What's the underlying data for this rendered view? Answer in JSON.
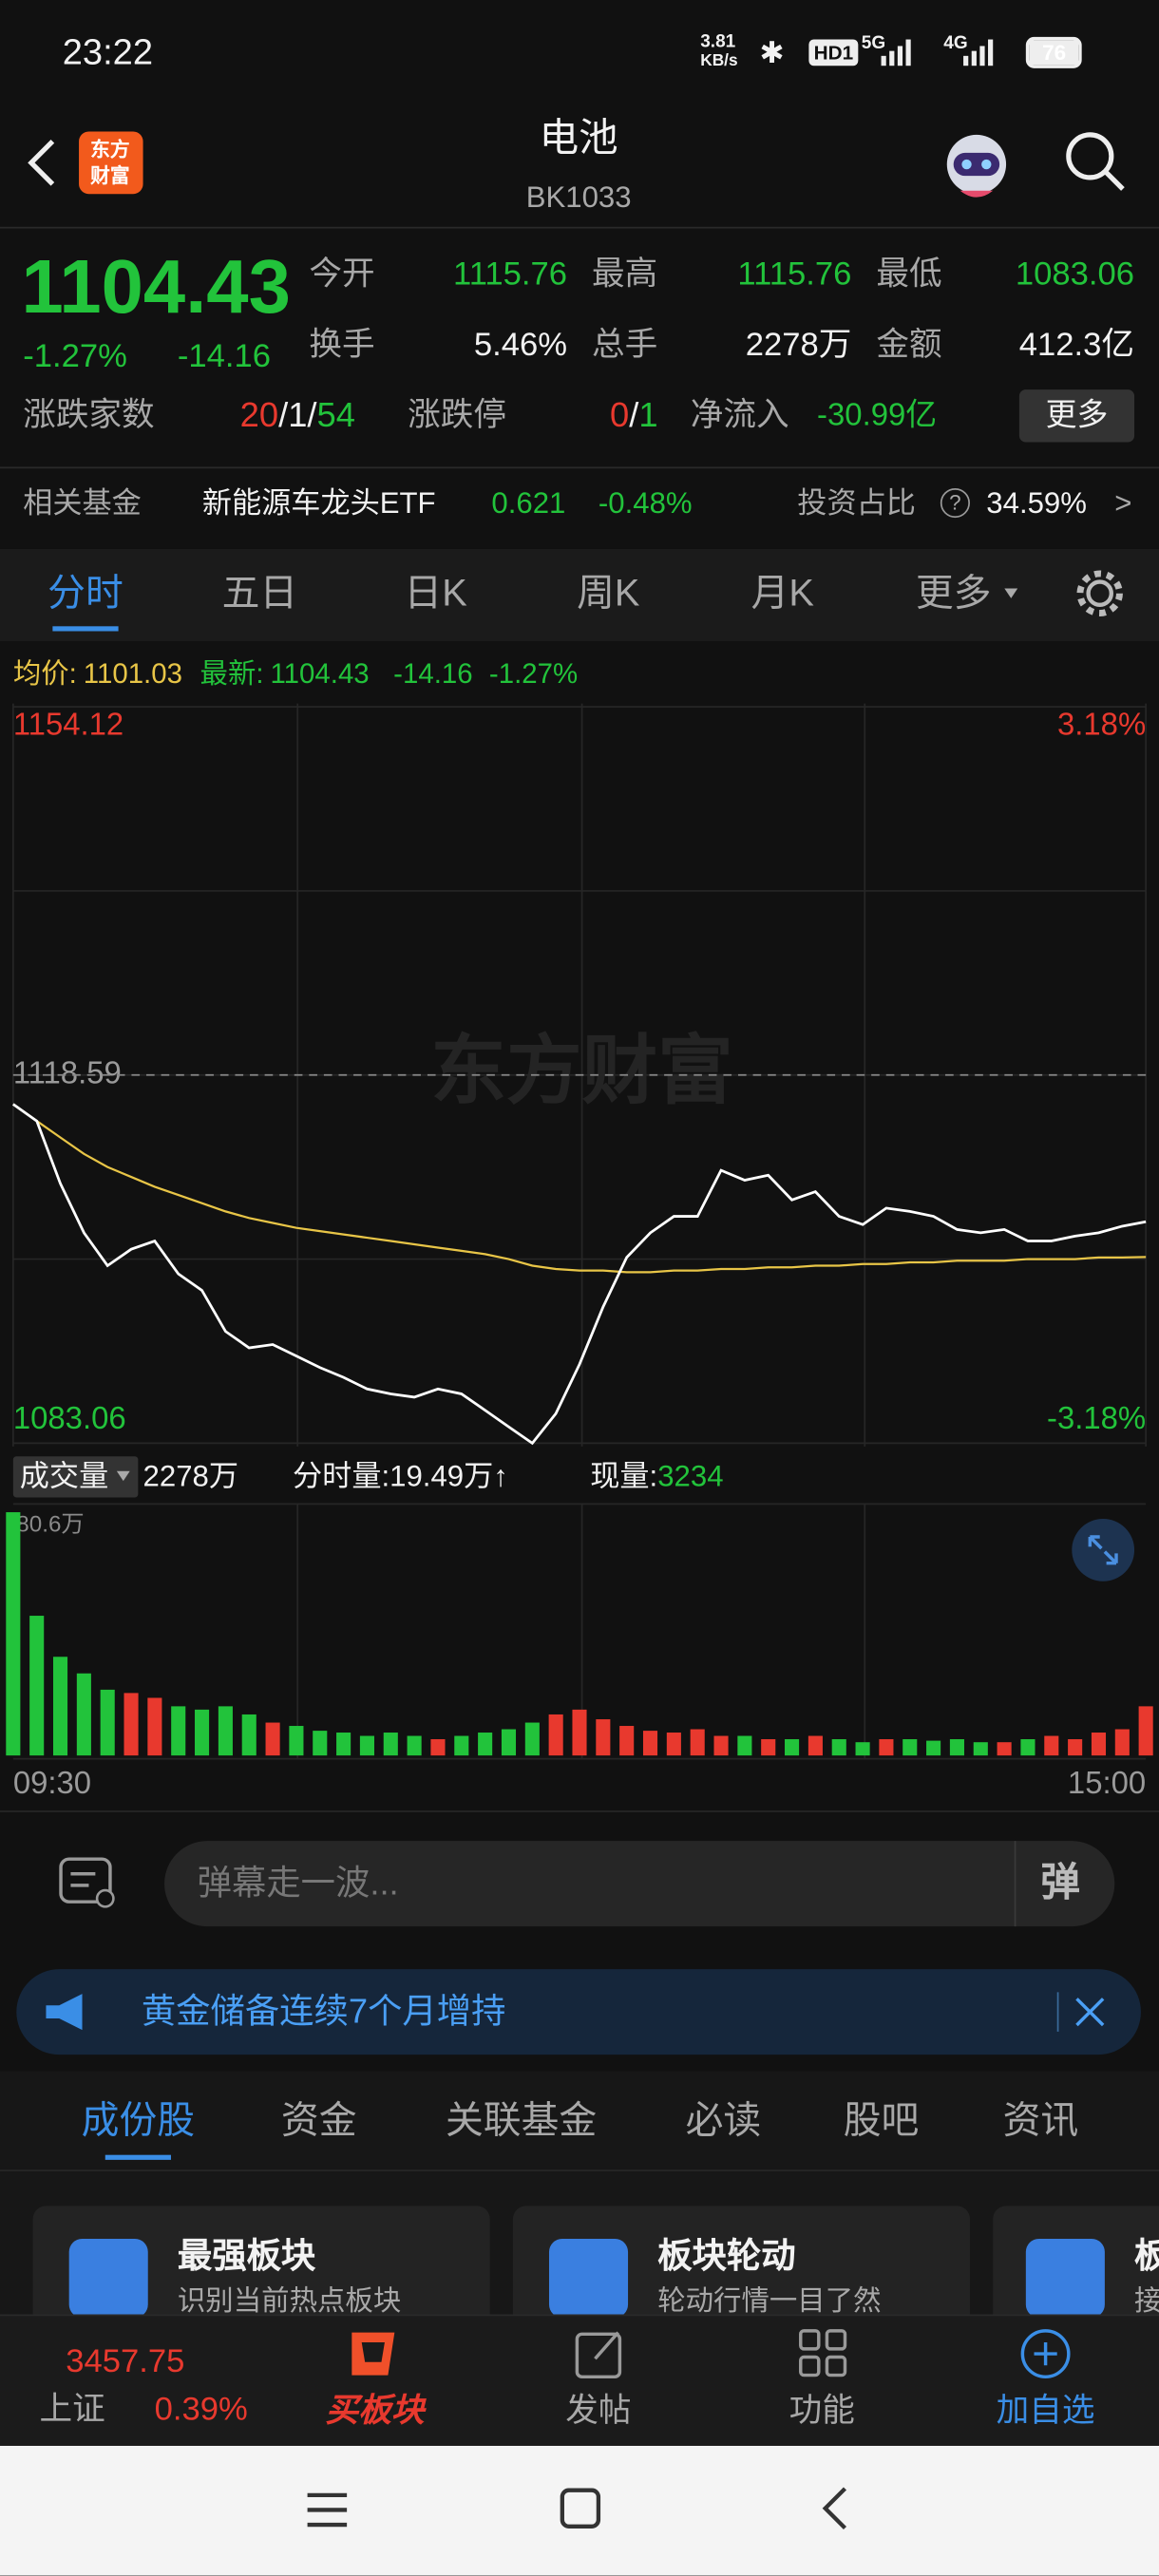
{
  "status_bar": {
    "time": "23:22",
    "net_speed": "3.81",
    "net_unit": "KB/s",
    "hd": "HD1",
    "sig1": "5G",
    "sig2": "4G",
    "battery": "76"
  },
  "header": {
    "logo_top": "东方",
    "logo_bottom": "财富",
    "title": "电池",
    "code": "BK1033"
  },
  "quote": {
    "price": "1104.43",
    "change_pct": "-1.27%",
    "change": "-14.16",
    "fields": [
      {
        "label": "今开",
        "value": "1115.76"
      },
      {
        "label": "最高",
        "value": "1115.76"
      },
      {
        "label": "最低",
        "value": "1083.06"
      },
      {
        "label": "换手",
        "value": "5.46%"
      },
      {
        "label": "总手",
        "value": "2278万"
      },
      {
        "label": "金额",
        "value": "412.3亿"
      }
    ]
  },
  "breadth": {
    "label": "涨跌家数",
    "up": "20",
    "sep": "/",
    "flat": "1",
    "down": "54",
    "limit_label": "涨跌停",
    "limit_up": "0",
    "limit_down": "1",
    "flow_label": "净流入",
    "flow": "-30.99亿",
    "more": "更多"
  },
  "fund": {
    "label": "相关基金",
    "name": "新能源车龙头ETF",
    "price": "0.621",
    "change": "-0.48%",
    "ratio_label": "投资占比",
    "help": "?",
    "ratio": "34.59%",
    "arrow": ">"
  },
  "tabs": {
    "items": [
      "分时",
      "五日",
      "日K",
      "周K",
      "月K",
      "更多"
    ]
  },
  "chart_data": {
    "type": "line",
    "watermark": "东方财富",
    "categories": [
      "09:30",
      null,
      null,
      null,
      null,
      null,
      null,
      null,
      null,
      null,
      null,
      null,
      null,
      null,
      null,
      null,
      null,
      null,
      null,
      null,
      null,
      null,
      null,
      null,
      null,
      null,
      null,
      null,
      null,
      null,
      null,
      null,
      null,
      null,
      null,
      null,
      null,
      null,
      null,
      null,
      null,
      null,
      null,
      null,
      null,
      null,
      null,
      null,
      "15:00"
    ],
    "series": [
      {
        "name": "均价:",
        "color": "#e8c547",
        "label": "1101.03",
        "values": [
          1115.76,
          1114.15,
          1112.56,
          1110.97,
          1109.71,
          1108.76,
          1107.8,
          1107.01,
          1106.22,
          1105.42,
          1104.79,
          1104.32,
          1103.84,
          1103.52,
          1103.2,
          1102.89,
          1102.57,
          1102.25,
          1101.94,
          1101.62,
          1101.3,
          1100.82,
          1100.19,
          1099.87,
          1099.71,
          1099.71,
          1099.55,
          1099.55,
          1099.71,
          1099.71,
          1099.87,
          1099.87,
          1100.03,
          1100.03,
          1100.19,
          1100.19,
          1100.35,
          1100.35,
          1100.51,
          1100.51,
          1100.67,
          1100.67,
          1100.67,
          1100.82,
          1100.82,
          1100.82,
          1100.98,
          1100.98,
          1101.03
        ]
      },
      {
        "name": "最新:",
        "color": "#ffffff",
        "label": "1104.43",
        "change": "-14.16",
        "change_pct": "-1.27%",
        "values": [
          1115.76,
          1114.15,
          1108.12,
          1103.36,
          1100.19,
          1101.78,
          1102.57,
          1099.4,
          1097.81,
          1093.84,
          1092.26,
          1092.58,
          1091.47,
          1090.35,
          1089.4,
          1088.29,
          1087.82,
          1087.5,
          1088.29,
          1087.82,
          1086.23,
          1084.64,
          1083.06,
          1085.91,
          1090.67,
          1096.22,
          1100.98,
          1103.36,
          1104.95,
          1104.95,
          1109.39,
          1108.44,
          1108.91,
          1106.53,
          1107.33,
          1104.95,
          1104.15,
          1105.74,
          1105.42,
          1104.95,
          1103.68,
          1103.36,
          1103.68,
          1102.57,
          1102.57,
          1103.04,
          1103.36,
          1104.0,
          1104.43
        ]
      }
    ],
    "ylim": [
      1083.06,
      1154.12
    ],
    "yticks": [
      1154.12,
      1118.59,
      1083.06
    ],
    "prev_close": 1118.59,
    "y2lim": [
      -3.18,
      3.18
    ],
    "y2ticks": [
      {
        "value": 3.18,
        "label": "3.18%"
      },
      {
        "value": -3.18,
        "label": "-3.18%"
      }
    ],
    "grid": true,
    "volume": {
      "label": "成交量",
      "total": "2278万",
      "minute_label": "分时量:",
      "minute": "19.49万",
      "arrow": "↑",
      "current_label": "现量:",
      "current": "3234",
      "ylim": [
        0,
        80.6
      ],
      "yticks": [
        {
          "value": 80.6,
          "label": "80.6万"
        }
      ],
      "up_color": "#e8392e",
      "down_color": "#22c33b",
      "values": [
        80.6,
        46.3,
        32.7,
        27.2,
        21.8,
        20.7,
        19.1,
        16.3,
        15.2,
        16.3,
        13.6,
        10.9,
        9.8,
        8.2,
        7.6,
        6.5,
        7.6,
        6.5,
        5.4,
        6.5,
        7.6,
        8.7,
        10.9,
        13.6,
        15.2,
        12.0,
        9.8,
        8.2,
        7.6,
        8.7,
        6.5,
        6.5,
        5.4,
        5.4,
        6.5,
        5.4,
        4.4,
        5.4,
        5.4,
        4.9,
        5.4,
        4.4,
        4.4,
        5.4,
        6.5,
        5.4,
        7.6,
        8.7,
        16.3
      ]
    }
  },
  "danmaku": {
    "placeholder": "弹幕走一波...",
    "button": "弹"
  },
  "notice": {
    "text": "黄金储备连续7个月增持"
  },
  "section_tabs": {
    "items": [
      "成份股",
      "资金",
      "关联基金",
      "必读",
      "股吧",
      "资讯"
    ]
  },
  "cards": [
    {
      "title": "最强板块",
      "desc": "识别当前热点板块"
    },
    {
      "title": "板块轮动",
      "desc": "轮动行情一目了然"
    },
    {
      "title": "板",
      "desc": "接"
    }
  ],
  "bottom_nav": {
    "index_value": "3457.75",
    "index_name": "上证",
    "index_change": "0.39%",
    "buy": "买板块",
    "post": "发帖",
    "func": "功能",
    "watch": "加自选"
  }
}
